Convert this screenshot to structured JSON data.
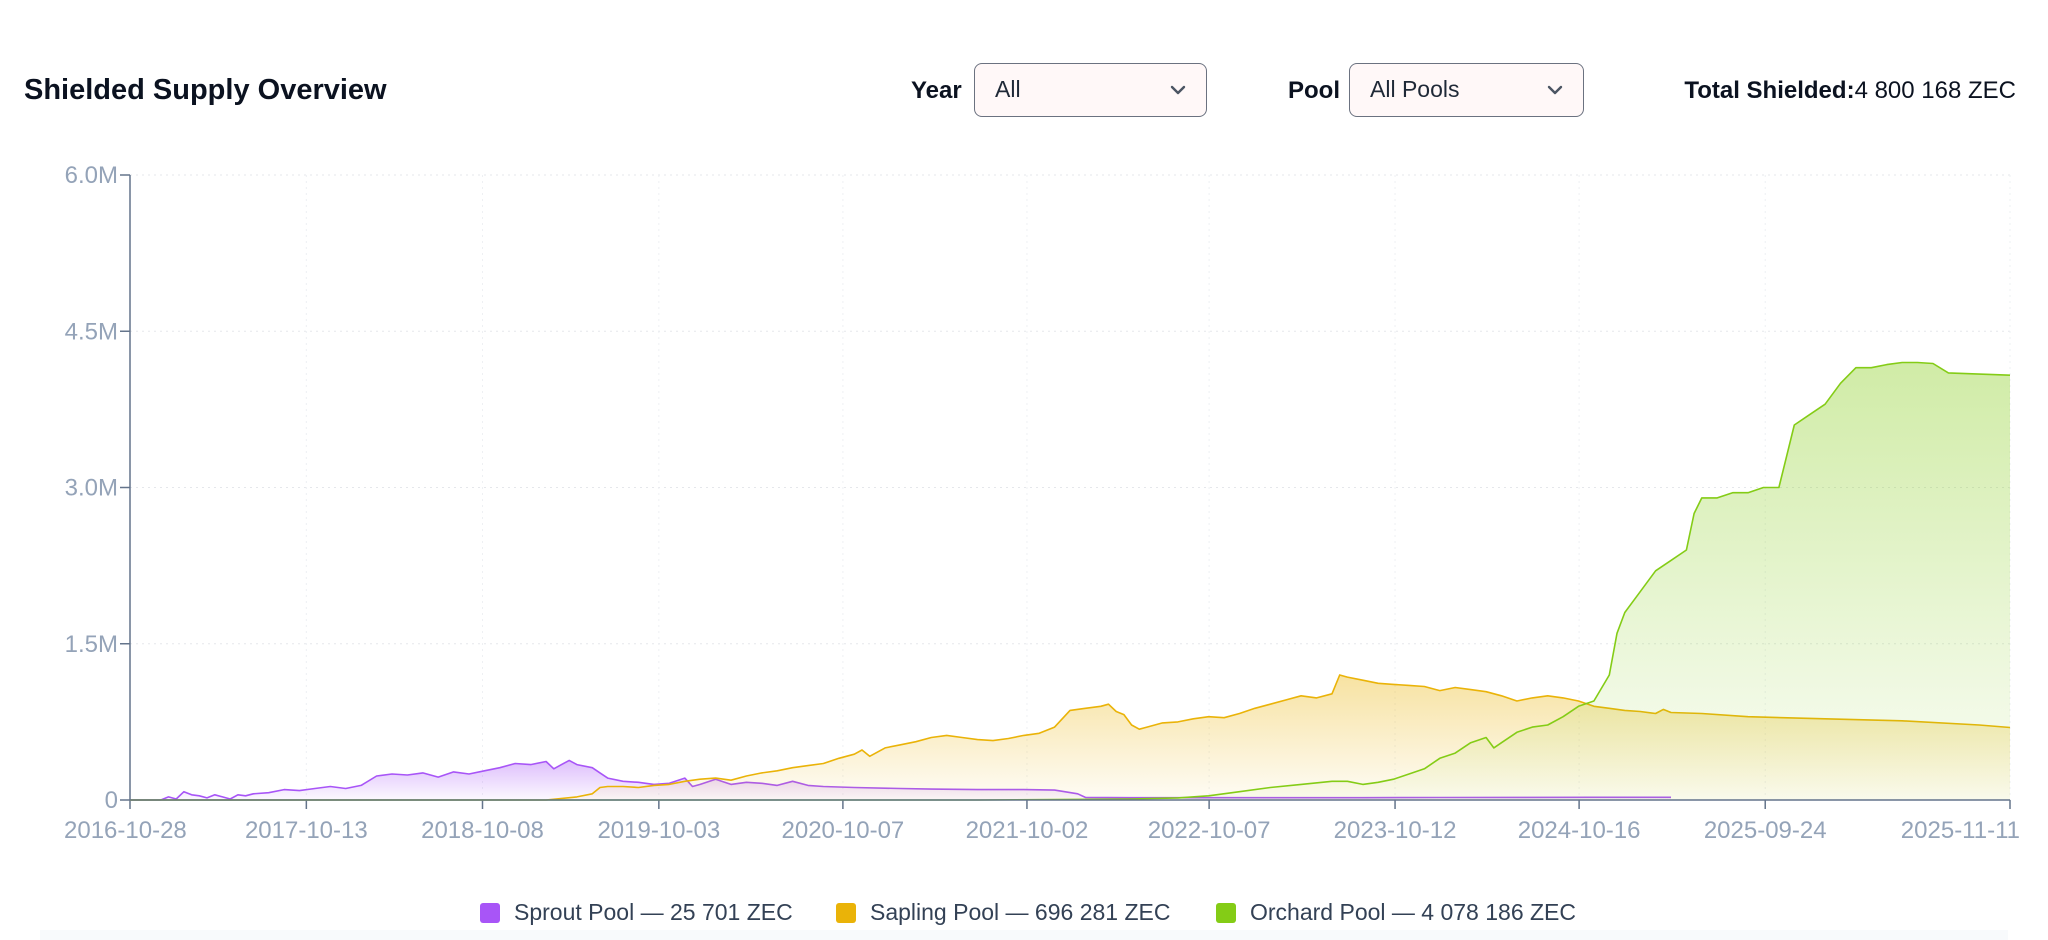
{
  "header": {
    "title": "Shielded Supply Overview",
    "year_label": "Year",
    "year_value": "All",
    "pool_label": "Pool",
    "pool_value": "All Pools",
    "total_label": "Total Shielded:",
    "total_value": "4 800 168 ZEC"
  },
  "legend": [
    {
      "label": "Sprout Pool — 25 701 ZEC",
      "color": "#a855f7"
    },
    {
      "label": "Sapling Pool — 696 281 ZEC",
      "color": "#eab308"
    },
    {
      "label": "Orchard Pool — 4 078 186 ZEC",
      "color": "#84cc16"
    }
  ],
  "icons": {
    "dropdown": "chevron-down-icon"
  },
  "chart_data": {
    "type": "area",
    "title": "",
    "xlabel": "",
    "ylabel": "",
    "ylim": [
      0,
      6000000
    ],
    "y_ticks": [
      0,
      1500000,
      3000000,
      4500000,
      6000000
    ],
    "y_tick_labels": [
      "0",
      "1.5M",
      "3.0M",
      "4.5M",
      "6.0M"
    ],
    "x_ticks": [
      0,
      0.0938,
      0.1875,
      0.2813,
      0.3792,
      0.4771,
      0.574,
      0.6729,
      0.7708,
      0.8698,
      1.0
    ],
    "x_tick_labels": [
      "2016-10-28",
      "2017-10-13",
      "2018-10-08",
      "2019-10-03",
      "2020-10-07",
      "2021-10-02",
      "2022-10-07",
      "2023-10-12",
      "2024-10-16",
      "2025-09-24",
      "2025-11-11"
    ],
    "grid": true,
    "legend_position": "bottom",
    "series": [
      {
        "name": "Sprout Pool",
        "color": "#a855f7",
        "points": [
          [
            0,
            0
          ],
          [
            0.02,
            0
          ],
          [
            0.025,
            30000
          ],
          [
            0.03,
            10000
          ],
          [
            0.035,
            80000
          ],
          [
            0.04,
            50000
          ],
          [
            0.045,
            40000
          ],
          [
            0.05,
            20000
          ],
          [
            0.055,
            50000
          ],
          [
            0.06,
            30000
          ],
          [
            0.065,
            10000
          ],
          [
            0.07,
            50000
          ],
          [
            0.075,
            40000
          ],
          [
            0.08,
            60000
          ],
          [
            0.09,
            70000
          ],
          [
            0.1,
            100000
          ],
          [
            0.11,
            90000
          ],
          [
            0.12,
            110000
          ],
          [
            0.13,
            130000
          ],
          [
            0.14,
            110000
          ],
          [
            0.15,
            140000
          ],
          [
            0.16,
            230000
          ],
          [
            0.17,
            250000
          ],
          [
            0.18,
            240000
          ],
          [
            0.19,
            260000
          ],
          [
            0.2,
            220000
          ],
          [
            0.21,
            270000
          ],
          [
            0.22,
            250000
          ],
          [
            0.23,
            280000
          ],
          [
            0.24,
            310000
          ],
          [
            0.25,
            350000
          ],
          [
            0.26,
            340000
          ],
          [
            0.27,
            370000
          ],
          [
            0.275,
            300000
          ],
          [
            0.28,
            340000
          ],
          [
            0.285,
            380000
          ],
          [
            0.29,
            340000
          ],
          [
            0.3,
            310000
          ],
          [
            0.305,
            260000
          ],
          [
            0.31,
            210000
          ],
          [
            0.32,
            180000
          ],
          [
            0.33,
            170000
          ],
          [
            0.34,
            150000
          ],
          [
            0.35,
            160000
          ],
          [
            0.36,
            210000
          ],
          [
            0.365,
            130000
          ],
          [
            0.37,
            150000
          ],
          [
            0.38,
            200000
          ],
          [
            0.39,
            150000
          ],
          [
            0.4,
            170000
          ],
          [
            0.41,
            160000
          ],
          [
            0.42,
            140000
          ],
          [
            0.43,
            180000
          ],
          [
            0.44,
            140000
          ],
          [
            0.45,
            130000
          ],
          [
            0.47,
            120000
          ],
          [
            0.5,
            110000
          ],
          [
            0.52,
            105000
          ],
          [
            0.55,
            100000
          ],
          [
            0.58,
            100000
          ],
          [
            0.6,
            95000
          ],
          [
            0.615,
            60000
          ],
          [
            0.62,
            25000
          ],
          [
            0.65,
            22000
          ],
          [
            0.7,
            22000
          ],
          [
            0.75,
            22000
          ],
          [
            0.8,
            22000
          ],
          [
            0.85,
            24000
          ],
          [
            0.9,
            25000
          ],
          [
            0.95,
            25500
          ],
          [
            1.0,
            25701
          ]
        ]
      },
      {
        "name": "Sapling Pool",
        "color": "#eab308",
        "points": [
          [
            0,
            0
          ],
          [
            0.27,
            0
          ],
          [
            0.29,
            30000
          ],
          [
            0.3,
            60000
          ],
          [
            0.305,
            120000
          ],
          [
            0.31,
            130000
          ],
          [
            0.32,
            130000
          ],
          [
            0.33,
            120000
          ],
          [
            0.34,
            140000
          ],
          [
            0.35,
            150000
          ],
          [
            0.36,
            180000
          ],
          [
            0.37,
            200000
          ],
          [
            0.38,
            210000
          ],
          [
            0.39,
            190000
          ],
          [
            0.4,
            230000
          ],
          [
            0.41,
            260000
          ],
          [
            0.42,
            280000
          ],
          [
            0.43,
            310000
          ],
          [
            0.44,
            330000
          ],
          [
            0.45,
            350000
          ],
          [
            0.46,
            400000
          ],
          [
            0.47,
            440000
          ],
          [
            0.475,
            480000
          ],
          [
            0.48,
            420000
          ],
          [
            0.49,
            500000
          ],
          [
            0.5,
            530000
          ],
          [
            0.51,
            560000
          ],
          [
            0.52,
            600000
          ],
          [
            0.53,
            620000
          ],
          [
            0.54,
            600000
          ],
          [
            0.55,
            580000
          ],
          [
            0.56,
            570000
          ],
          [
            0.57,
            590000
          ],
          [
            0.58,
            620000
          ],
          [
            0.59,
            640000
          ],
          [
            0.6,
            700000
          ],
          [
            0.61,
            860000
          ],
          [
            0.62,
            880000
          ],
          [
            0.63,
            900000
          ],
          [
            0.635,
            920000
          ],
          [
            0.64,
            850000
          ],
          [
            0.645,
            820000
          ],
          [
            0.65,
            720000
          ],
          [
            0.655,
            680000
          ],
          [
            0.66,
            700000
          ],
          [
            0.67,
            740000
          ],
          [
            0.68,
            750000
          ],
          [
            0.69,
            780000
          ],
          [
            0.7,
            800000
          ],
          [
            0.71,
            790000
          ],
          [
            0.72,
            830000
          ],
          [
            0.73,
            880000
          ],
          [
            0.74,
            920000
          ],
          [
            0.75,
            960000
          ],
          [
            0.76,
            1000000
          ],
          [
            0.77,
            980000
          ],
          [
            0.78,
            1020000
          ],
          [
            0.785,
            1200000
          ],
          [
            0.79,
            1180000
          ],
          [
            0.8,
            1150000
          ],
          [
            0.81,
            1120000
          ],
          [
            0.82,
            1110000
          ],
          [
            0.83,
            1100000
          ],
          [
            0.84,
            1090000
          ],
          [
            0.85,
            1050000
          ],
          [
            0.86,
            1080000
          ],
          [
            0.87,
            1060000
          ],
          [
            0.88,
            1040000
          ],
          [
            0.89,
            1000000
          ],
          [
            0.9,
            950000
          ],
          [
            0.91,
            980000
          ],
          [
            0.92,
            1000000
          ],
          [
            0.93,
            980000
          ],
          [
            0.94,
            950000
          ],
          [
            0.95,
            900000
          ],
          [
            0.96,
            880000
          ],
          [
            0.97,
            860000
          ],
          [
            0.98,
            850000
          ],
          [
            0.99,
            830000
          ],
          [
            0.995,
            870000
          ],
          [
            1.0,
            840000
          ],
          [
            1.02,
            830000
          ],
          [
            1.05,
            800000
          ],
          [
            1.1,
            780000
          ],
          [
            1.15,
            760000
          ],
          [
            1.2,
            720000
          ],
          [
            1.22,
            696281
          ]
        ]
      },
      {
        "name": "Orchard Pool",
        "color": "#84cc16",
        "points": [
          [
            0,
            0
          ],
          [
            0.55,
            0
          ],
          [
            0.6,
            5000
          ],
          [
            0.65,
            10000
          ],
          [
            0.68,
            20000
          ],
          [
            0.7,
            40000
          ],
          [
            0.72,
            80000
          ],
          [
            0.74,
            120000
          ],
          [
            0.76,
            150000
          ],
          [
            0.78,
            180000
          ],
          [
            0.79,
            180000
          ],
          [
            0.8,
            150000
          ],
          [
            0.81,
            170000
          ],
          [
            0.82,
            200000
          ],
          [
            0.83,
            250000
          ],
          [
            0.84,
            300000
          ],
          [
            0.85,
            400000
          ],
          [
            0.86,
            450000
          ],
          [
            0.87,
            550000
          ],
          [
            0.88,
            600000
          ],
          [
            0.885,
            500000
          ],
          [
            0.89,
            550000
          ],
          [
            0.9,
            650000
          ],
          [
            0.91,
            700000
          ],
          [
            0.92,
            720000
          ],
          [
            0.93,
            800000
          ],
          [
            0.94,
            900000
          ],
          [
            0.95,
            950000
          ],
          [
            0.96,
            1200000
          ],
          [
            0.965,
            1600000
          ],
          [
            0.97,
            1800000
          ],
          [
            0.98,
            2000000
          ],
          [
            0.99,
            2200000
          ],
          [
            1.0,
            2300000
          ],
          [
            1.01,
            2400000
          ],
          [
            1.015,
            2750000
          ],
          [
            1.02,
            2900000
          ],
          [
            1.03,
            2900000
          ],
          [
            1.04,
            2950000
          ],
          [
            1.05,
            2950000
          ],
          [
            1.06,
            3000000
          ],
          [
            1.07,
            3000000
          ],
          [
            1.075,
            3300000
          ],
          [
            1.08,
            3600000
          ],
          [
            1.09,
            3700000
          ],
          [
            1.1,
            3800000
          ],
          [
            1.11,
            4000000
          ],
          [
            1.12,
            4150000
          ],
          [
            1.13,
            4150000
          ],
          [
            1.14,
            4180000
          ],
          [
            1.15,
            4200000
          ],
          [
            1.16,
            4200000
          ],
          [
            1.17,
            4190000
          ],
          [
            1.18,
            4100000
          ],
          [
            1.22,
            4078186
          ]
        ]
      }
    ]
  }
}
